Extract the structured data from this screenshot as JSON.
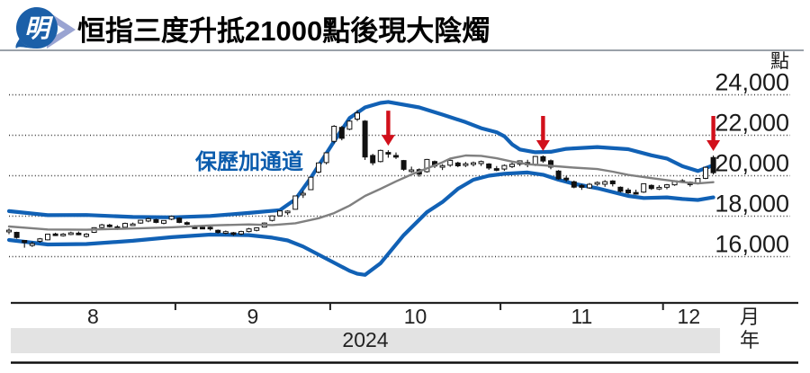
{
  "header": {
    "logo_text": "明",
    "title": "恒指三度升抵21000點後現大陰燭"
  },
  "chart_data": {
    "type": "candlestick",
    "title": "恒指三度升抵21000點後現大陰燭",
    "annotation_label": "保歷加通道",
    "y_axis": {
      "unit": "點",
      "ticks": [
        24000,
        22000,
        20000,
        18000,
        16000
      ],
      "tick_labels": [
        "24,000",
        "22,000",
        "20,000",
        "18,000",
        "16,000"
      ],
      "grid": "dotted"
    },
    "x_axis": {
      "month_labels": [
        "8",
        "9",
        "10",
        "11",
        "12"
      ],
      "month_boundaries_idx": [
        21.5,
        41.5,
        63.5,
        84.5
      ],
      "unit_month": "月",
      "unit_year": "年",
      "year_label": "2024"
    },
    "colors": {
      "band_blue": "#1161b5",
      "middle_gray": "#808080",
      "arrow_red": "#d1101b",
      "candle_black": "#111111",
      "annotation_blue": "#0b5cad",
      "year_band_gray": "#e3e3e3"
    },
    "candles_ohlc": [
      [
        17280,
        17390,
        17110,
        17305
      ],
      [
        17200,
        17230,
        16890,
        16945
      ],
      [
        16800,
        16820,
        16441,
        16698
      ],
      [
        16550,
        16740,
        16480,
        16647
      ],
      [
        16760,
        16920,
        16690,
        16878
      ],
      [
        16830,
        17130,
        16800,
        17108
      ],
      [
        17120,
        17180,
        17020,
        17090
      ],
      [
        17080,
        17160,
        16990,
        17111
      ],
      [
        17120,
        17230,
        17060,
        17174
      ],
      [
        17160,
        17240,
        17060,
        17113
      ],
      [
        17000,
        17160,
        16940,
        17109
      ],
      [
        17200,
        17450,
        17170,
        17430
      ],
      [
        17440,
        17620,
        17400,
        17569
      ],
      [
        17560,
        17620,
        17440,
        17511
      ],
      [
        17470,
        17550,
        17320,
        17391
      ],
      [
        17450,
        17680,
        17440,
        17641
      ],
      [
        17610,
        17680,
        17530,
        17612
      ],
      [
        17660,
        17810,
        17620,
        17798
      ],
      [
        17760,
        17920,
        17700,
        17874
      ],
      [
        17830,
        17870,
        17650,
        17692
      ],
      [
        17650,
        17800,
        17600,
        17786
      ],
      [
        17850,
        18030,
        17800,
        17989
      ],
      [
        17900,
        17940,
        17650,
        17691
      ],
      [
        17680,
        17740,
        17560,
        17651
      ],
      [
        17470,
        17560,
        17370,
        17457
      ],
      [
        17450,
        17560,
        17390,
        17444
      ],
      [
        17450,
        17530,
        17290,
        17444
      ],
      [
        17300,
        17340,
        17140,
        17196
      ],
      [
        17170,
        17290,
        17110,
        17234
      ],
      [
        17180,
        17220,
        17030,
        17108
      ],
      [
        17120,
        17280,
        17070,
        17240
      ],
      [
        17240,
        17420,
        17200,
        17369
      ],
      [
        17300,
        17450,
        17250,
        17422
      ],
      [
        17460,
        17690,
        17440,
        17660
      ],
      [
        17790,
        18030,
        17740,
        18013
      ],
      [
        18020,
        18290,
        17970,
        18258
      ],
      [
        18180,
        18290,
        18060,
        18248
      ],
      [
        18340,
        19010,
        18330,
        19001
      ],
      [
        19090,
        19260,
        18900,
        19129
      ],
      [
        19310,
        19950,
        19300,
        19924
      ],
      [
        20180,
        20650,
        20120,
        20632
      ],
      [
        20650,
        21140,
        20560,
        21133
      ],
      [
        21700,
        22500,
        21600,
        22443
      ],
      [
        22390,
        22460,
        21750,
        21850
      ],
      [
        22300,
        22740,
        22250,
        22700
      ],
      [
        22800,
        23241,
        22700,
        23099
      ],
      [
        22700,
        22750,
        20780,
        20926
      ],
      [
        21000,
        21080,
        20520,
        20637
      ],
      [
        20700,
        21290,
        20660,
        21251
      ],
      [
        21150,
        21260,
        20890,
        21092
      ],
      [
        21000,
        21150,
        20830,
        20938
      ],
      [
        20750,
        20780,
        20240,
        20318
      ],
      [
        20250,
        20450,
        20150,
        20287
      ],
      [
        20300,
        20360,
        19950,
        20079
      ],
      [
        20200,
        20830,
        20150,
        20804
      ],
      [
        20700,
        20750,
        20380,
        20478
      ],
      [
        20420,
        20570,
        20280,
        20499
      ],
      [
        20520,
        20790,
        20440,
        20760
      ],
      [
        20630,
        20690,
        20420,
        20489
      ],
      [
        20560,
        20680,
        20430,
        20590
      ],
      [
        20560,
        20700,
        20460,
        20638
      ],
      [
        20600,
        20750,
        20480,
        20701
      ],
      [
        20580,
        20620,
        20290,
        20381
      ],
      [
        20350,
        20480,
        20220,
        20317
      ],
      [
        20330,
        20560,
        20240,
        20506
      ],
      [
        20450,
        20640,
        20380,
        20567
      ],
      [
        20570,
        20760,
        20480,
        20736
      ],
      [
        20650,
        20790,
        20420,
        20538
      ],
      [
        20560,
        20970,
        20480,
        20953
      ],
      [
        20940,
        21000,
        20640,
        20728
      ],
      [
        20740,
        20800,
        20320,
        20426
      ],
      [
        20230,
        20280,
        19800,
        19846
      ],
      [
        19880,
        20000,
        19700,
        19823
      ],
      [
        19700,
        19760,
        19380,
        19435
      ],
      [
        19520,
        19590,
        19300,
        19426
      ],
      [
        19400,
        19640,
        19350,
        19576
      ],
      [
        19600,
        19720,
        19500,
        19663
      ],
      [
        19580,
        19780,
        19450,
        19705
      ],
      [
        19740,
        19780,
        19470,
        19601
      ],
      [
        19430,
        19470,
        19170,
        19229
      ],
      [
        19290,
        19390,
        19090,
        19150
      ],
      [
        19170,
        19310,
        19060,
        19159
      ],
      [
        19190,
        19620,
        19150,
        19603
      ],
      [
        19520,
        19570,
        19300,
        19366
      ],
      [
        19400,
        19530,
        19290,
        19424
      ],
      [
        19430,
        19590,
        19330,
        19550
      ],
      [
        19550,
        19780,
        19500,
        19746
      ],
      [
        19750,
        19830,
        19640,
        19742
      ],
      [
        19680,
        19720,
        19460,
        19560
      ],
      [
        19620,
        19880,
        19570,
        19866
      ],
      [
        19870,
        20420,
        19830,
        20414
      ],
      [
        20900,
        21000,
        20060,
        20150
      ]
    ],
    "bollinger": {
      "upper": [
        [
          0,
          18250
        ],
        [
          5,
          18050
        ],
        [
          10,
          18060
        ],
        [
          16,
          17960
        ],
        [
          21,
          17940
        ],
        [
          26,
          18010
        ],
        [
          31,
          18160
        ],
        [
          35,
          18300
        ],
        [
          37,
          18830
        ],
        [
          39,
          19900
        ],
        [
          41,
          21100
        ],
        [
          42,
          21700
        ],
        [
          44,
          22850
        ],
        [
          46,
          23380
        ],
        [
          48,
          23600
        ],
        [
          49,
          23650
        ],
        [
          53,
          23380
        ],
        [
          56,
          23020
        ],
        [
          59,
          22650
        ],
        [
          61,
          22350
        ],
        [
          63,
          22150
        ],
        [
          64,
          21950
        ],
        [
          65,
          21550
        ],
        [
          66,
          21300
        ],
        [
          68,
          21160
        ],
        [
          70,
          21180
        ],
        [
          72,
          21330
        ],
        [
          76,
          21420
        ],
        [
          80,
          21310
        ],
        [
          83,
          21010
        ],
        [
          85,
          20850
        ],
        [
          87,
          20470
        ],
        [
          89,
          20230
        ],
        [
          91,
          20520
        ]
      ],
      "middle": [
        [
          0,
          17490
        ],
        [
          5,
          17340
        ],
        [
          10,
          17330
        ],
        [
          16,
          17390
        ],
        [
          21,
          17450
        ],
        [
          26,
          17540
        ],
        [
          31,
          17590
        ],
        [
          34,
          17560
        ],
        [
          37,
          17650
        ],
        [
          40,
          17900
        ],
        [
          42,
          18150
        ],
        [
          44,
          18520
        ],
        [
          46,
          19000
        ],
        [
          48,
          19350
        ],
        [
          50,
          19720
        ],
        [
          52,
          20060
        ],
        [
          54,
          20360
        ],
        [
          56,
          20660
        ],
        [
          57,
          20850
        ],
        [
          59,
          21000
        ],
        [
          61,
          20980
        ],
        [
          63,
          20860
        ],
        [
          65,
          20700
        ],
        [
          67,
          20570
        ],
        [
          70,
          20490
        ],
        [
          73,
          20400
        ],
        [
          76,
          20330
        ],
        [
          78,
          20200
        ],
        [
          80,
          20040
        ],
        [
          83,
          19880
        ],
        [
          85,
          19780
        ],
        [
          87,
          19680
        ],
        [
          89,
          19620
        ],
        [
          91,
          19680
        ]
      ],
      "lower": [
        [
          0,
          16820
        ],
        [
          5,
          16600
        ],
        [
          10,
          16620
        ],
        [
          16,
          16780
        ],
        [
          21,
          16960
        ],
        [
          26,
          17090
        ],
        [
          31,
          17060
        ],
        [
          34,
          16940
        ],
        [
          36,
          16800
        ],
        [
          38,
          16500
        ],
        [
          40,
          16100
        ],
        [
          42,
          15700
        ],
        [
          44,
          15300
        ],
        [
          45,
          15150
        ],
        [
          46,
          15100
        ],
        [
          48,
          15670
        ],
        [
          51,
          17060
        ],
        [
          54,
          18200
        ],
        [
          56,
          18700
        ],
        [
          58,
          19350
        ],
        [
          60,
          19800
        ],
        [
          62,
          20000
        ],
        [
          64,
          20100
        ],
        [
          67,
          20160
        ],
        [
          69,
          20050
        ],
        [
          71,
          19800
        ],
        [
          73,
          19600
        ],
        [
          76,
          19380
        ],
        [
          80,
          19000
        ],
        [
          82,
          18900
        ],
        [
          85,
          18930
        ],
        [
          87,
          18850
        ],
        [
          89,
          18800
        ],
        [
          91,
          18930
        ]
      ]
    },
    "arrows": {
      "indices": [
        49,
        69,
        91
      ]
    }
  }
}
